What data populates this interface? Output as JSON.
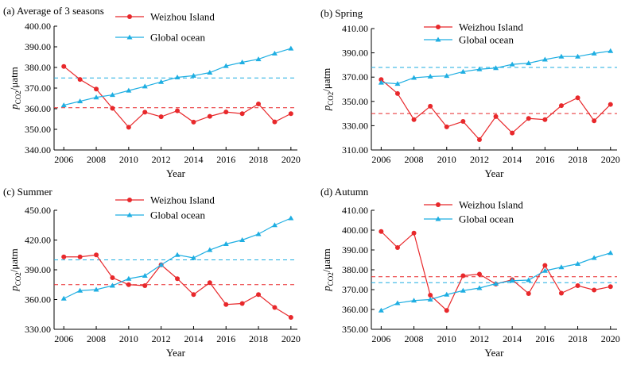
{
  "figure": {
    "panels": [
      {
        "panel_title": "(a) Average of 3 seasons",
        "ylabel_main": "p",
        "ylabel_sub": "CO2",
        "ylabel_unit": "/μatm",
        "xlabel": "Year",
        "legend": [
          "Weizhou Island",
          "Global ocean"
        ]
      },
      {
        "panel_title": "(b) Spring",
        "ylabel_main": "p",
        "ylabel_sub": "CO2",
        "ylabel_unit": "/μatm",
        "xlabel": "Year",
        "legend": [
          "Weizhou Island",
          "Global ocean"
        ]
      },
      {
        "panel_title": "(c) Summer",
        "ylabel_main": "p",
        "ylabel_sub": "CO2",
        "ylabel_unit": "/μatm",
        "xlabel": "Year",
        "legend": [
          "Weizhou Island",
          "Global ocean"
        ]
      },
      {
        "panel_title": "(d) Autumn",
        "ylabel_main": "p",
        "ylabel_sub": "CO2",
        "ylabel_unit": "/μatm",
        "xlabel": "Year",
        "legend": [
          "Weizhou Island",
          "Global ocean"
        ]
      }
    ]
  },
  "chart_data": [
    {
      "type": "line",
      "title": "(a) Average of 3 seasons",
      "xlabel": "Year",
      "ylabel": "pCO2/μatm",
      "xlim": [
        2005.4,
        2020.4
      ],
      "ylim": [
        340,
        400
      ],
      "xticks": [
        2006,
        2008,
        2010,
        2012,
        2014,
        2016,
        2018,
        2020
      ],
      "yticks": [
        "340.00",
        "350.00",
        "360.00",
        "370.00",
        "380.00",
        "390.00",
        "400.00"
      ],
      "x": [
        2006,
        2007,
        2008,
        2009,
        2010,
        2011,
        2012,
        2013,
        2014,
        2015,
        2016,
        2017,
        2018,
        2019,
        2020
      ],
      "series": [
        {
          "name": "Weizhou Island",
          "color": "#e8282b",
          "marker": "circle",
          "values": [
            380.5,
            374.2,
            369.5,
            360.2,
            351.0,
            358.3,
            356.1,
            359.0,
            353.5,
            356.3,
            358.4,
            357.6,
            362.3,
            353.6,
            357.6
          ],
          "mean": 360.5
        },
        {
          "name": "Global ocean",
          "color": "#1eaee2",
          "marker": "triangle",
          "values": [
            361.7,
            363.6,
            365.5,
            366.7,
            368.8,
            370.8,
            373.0,
            375.2,
            376.0,
            377.5,
            380.7,
            382.5,
            384.0,
            386.8,
            389.2
          ],
          "mean": 374.9
        }
      ],
      "legend": "top-center",
      "grid": false
    },
    {
      "type": "line",
      "title": "(b) Spring",
      "xlabel": "Year",
      "ylabel": "pCO2/μatm",
      "xlim": [
        2005.4,
        2020.4
      ],
      "ylim": [
        310,
        410
      ],
      "xticks": [
        2006,
        2008,
        2010,
        2012,
        2014,
        2016,
        2018,
        2020
      ],
      "yticks": [
        "310.00",
        "330.00",
        "350.00",
        "370.00",
        "390.00",
        "410.00"
      ],
      "x": [
        2006,
        2007,
        2008,
        2009,
        2010,
        2011,
        2012,
        2013,
        2014,
        2015,
        2016,
        2017,
        2018,
        2019,
        2020
      ],
      "series": [
        {
          "name": "Weizhou Island",
          "color": "#e8282b",
          "marker": "circle",
          "values": [
            368.0,
            356.5,
            335.0,
            346.0,
            329.0,
            333.5,
            318.5,
            337.5,
            324.0,
            336.0,
            335.0,
            346.5,
            353.0,
            334.0,
            347.5
          ],
          "mean": 340.0
        },
        {
          "name": "Global ocean",
          "color": "#1eaee2",
          "marker": "triangle",
          "values": [
            365.5,
            364.5,
            369.5,
            370.5,
            371.0,
            374.5,
            376.5,
            377.5,
            380.5,
            381.5,
            384.5,
            387.0,
            387.0,
            389.5,
            391.5
          ],
          "mean": 378.0
        }
      ],
      "legend": "top-center",
      "grid": false
    },
    {
      "type": "line",
      "title": "(c) Summer",
      "xlabel": "Year",
      "ylabel": "pCO2/μatm",
      "xlim": [
        2005.4,
        2020.4
      ],
      "ylim": [
        330,
        450
      ],
      "xticks": [
        2006,
        2008,
        2010,
        2012,
        2014,
        2016,
        2018,
        2020
      ],
      "yticks": [
        "330.00",
        "360.00",
        "390.00",
        "420.00",
        "450.00"
      ],
      "x": [
        2006,
        2007,
        2008,
        2009,
        2010,
        2011,
        2012,
        2013,
        2014,
        2015,
        2016,
        2017,
        2018,
        2019,
        2020
      ],
      "series": [
        {
          "name": "Weizhou Island",
          "color": "#e8282b",
          "marker": "circle",
          "values": [
            403.0,
            403.0,
            405.0,
            382.0,
            375.0,
            374.0,
            395.0,
            381.0,
            365.0,
            377.0,
            355.0,
            356.0,
            365.0,
            352.0,
            342.0
          ],
          "mean": 375.0
        },
        {
          "name": "Global ocean",
          "color": "#1eaee2",
          "marker": "triangle",
          "values": [
            361.0,
            369.0,
            370.0,
            374.0,
            381.0,
            384.0,
            395.0,
            405.0,
            402.0,
            410.0,
            416.0,
            420.0,
            426.0,
            435.0,
            442.0
          ],
          "mean": 400.0
        }
      ],
      "legend": "top-center",
      "grid": false
    },
    {
      "type": "line",
      "title": "(d) Autumn",
      "xlabel": "Year",
      "ylabel": "pCO2/μatm",
      "xlim": [
        2005.4,
        2020.4
      ],
      "ylim": [
        350,
        410
      ],
      "xticks": [
        2006,
        2008,
        2010,
        2012,
        2014,
        2016,
        2018,
        2020
      ],
      "yticks": [
        "350.00",
        "360.00",
        "370.00",
        "380.00",
        "390.00",
        "400.00",
        "410.00"
      ],
      "x": [
        2006,
        2007,
        2008,
        2009,
        2010,
        2011,
        2012,
        2013,
        2014,
        2015,
        2016,
        2017,
        2018,
        2019,
        2020
      ],
      "series": [
        {
          "name": "Weizhou Island",
          "color": "#e8282b",
          "marker": "circle",
          "values": [
            399.3,
            391.2,
            398.5,
            367.2,
            359.5,
            377.0,
            377.8,
            372.8,
            375.0,
            368.0,
            382.2,
            368.2,
            372.0,
            369.8,
            371.5
          ],
          "mean": 376.5
        },
        {
          "name": "Global ocean",
          "color": "#1eaee2",
          "marker": "triangle",
          "values": [
            359.5,
            363.2,
            364.5,
            365.0,
            367.5,
            369.5,
            370.8,
            373.0,
            374.5,
            374.8,
            379.5,
            381.3,
            383.0,
            386.0,
            388.5
          ],
          "mean": 373.5
        }
      ],
      "legend": "top-center",
      "grid": false
    }
  ]
}
